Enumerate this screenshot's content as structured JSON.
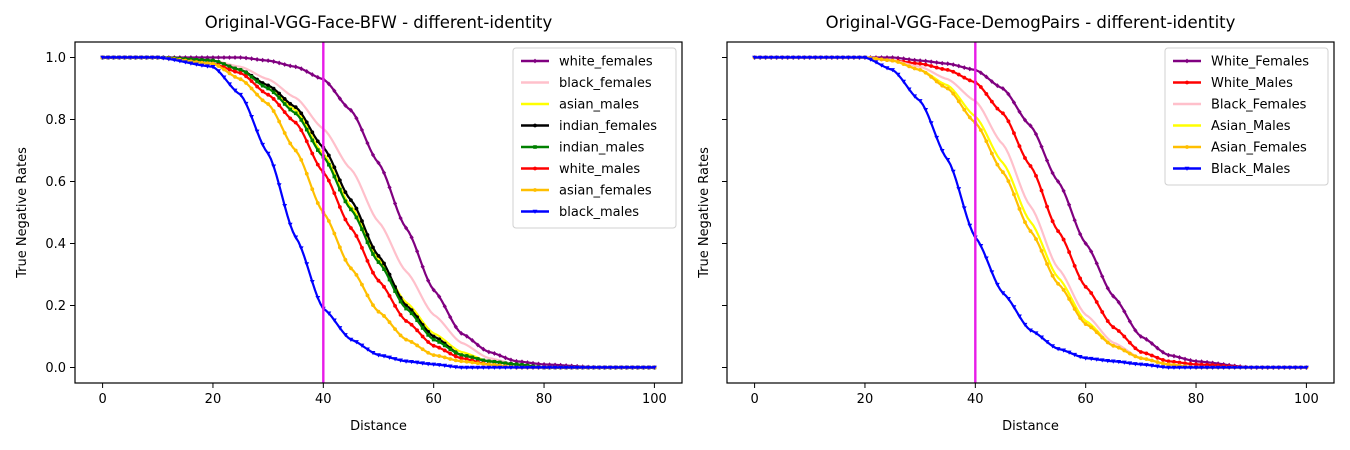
{
  "chart_data": [
    {
      "type": "line",
      "title": "Original-VGG-Face-BFW - different-identity",
      "xlabel": "Distance",
      "ylabel": "True Negative Rates",
      "xlim": [
        -5,
        105
      ],
      "ylim": [
        -0.05,
        1.05
      ],
      "xticks": [
        0,
        20,
        40,
        60,
        80,
        100
      ],
      "yticks": [
        0.0,
        0.2,
        0.4,
        0.6,
        0.8,
        1.0
      ],
      "ytick_labels": [
        "0.0",
        "0.2",
        "0.4",
        "0.6",
        "0.8",
        "1.0"
      ],
      "xtick_labels": [
        "0",
        "20",
        "40",
        "60",
        "80",
        "100"
      ],
      "legend_position": "top-right",
      "threshold_line": {
        "x": 40,
        "color": "#e81ce8"
      },
      "x": [
        0,
        10,
        20,
        25,
        30,
        35,
        40,
        45,
        50,
        55,
        60,
        65,
        70,
        75,
        80,
        90,
        100
      ],
      "series": [
        {
          "name": "white_females",
          "color": "#800080",
          "marker": "diamond",
          "values": [
            1.0,
            1.0,
            1.0,
            1.0,
            0.99,
            0.97,
            0.93,
            0.83,
            0.66,
            0.45,
            0.25,
            0.11,
            0.05,
            0.02,
            0.01,
            0.0,
            0.0
          ]
        },
        {
          "name": "black_females",
          "color": "#ffc0cb",
          "marker": "none",
          "values": [
            1.0,
            1.0,
            0.99,
            0.97,
            0.93,
            0.87,
            0.77,
            0.64,
            0.47,
            0.31,
            0.17,
            0.08,
            0.03,
            0.01,
            0.0,
            0.0,
            0.0
          ]
        },
        {
          "name": "asian_males",
          "color": "#ffff00",
          "marker": "none",
          "values": [
            1.0,
            1.0,
            0.99,
            0.96,
            0.91,
            0.83,
            0.69,
            0.52,
            0.35,
            0.21,
            0.11,
            0.05,
            0.02,
            0.01,
            0.0,
            0.0,
            0.0
          ]
        },
        {
          "name": "indian_females",
          "color": "#000000",
          "marker": "circle",
          "values": [
            1.0,
            1.0,
            0.99,
            0.96,
            0.91,
            0.84,
            0.71,
            0.54,
            0.36,
            0.2,
            0.1,
            0.04,
            0.02,
            0.01,
            0.0,
            0.0,
            0.0
          ]
        },
        {
          "name": "indian_males",
          "color": "#008000",
          "marker": "square",
          "values": [
            1.0,
            1.0,
            0.99,
            0.96,
            0.9,
            0.82,
            0.68,
            0.51,
            0.34,
            0.19,
            0.09,
            0.04,
            0.02,
            0.01,
            0.0,
            0.0,
            0.0
          ]
        },
        {
          "name": "white_males",
          "color": "#ff0000",
          "marker": "circle",
          "values": [
            1.0,
            1.0,
            0.98,
            0.95,
            0.88,
            0.79,
            0.63,
            0.45,
            0.28,
            0.15,
            0.07,
            0.03,
            0.01,
            0.0,
            0.0,
            0.0,
            0.0
          ]
        },
        {
          "name": "asian_females",
          "color": "#ffbf00",
          "marker": "circle",
          "values": [
            1.0,
            1.0,
            0.98,
            0.93,
            0.85,
            0.7,
            0.5,
            0.32,
            0.18,
            0.09,
            0.04,
            0.02,
            0.01,
            0.0,
            0.0,
            0.0,
            0.0
          ]
        },
        {
          "name": "black_males",
          "color": "#0000ff",
          "marker": "triangle-down",
          "values": [
            1.0,
            1.0,
            0.97,
            0.88,
            0.69,
            0.42,
            0.19,
            0.09,
            0.04,
            0.02,
            0.01,
            0.0,
            0.0,
            0.0,
            0.0,
            0.0,
            0.0
          ]
        }
      ]
    },
    {
      "type": "line",
      "title": "Original-VGG-Face-DemogPairs - different-identity",
      "xlabel": "Distance",
      "ylabel": "True Negative Rates",
      "xlim": [
        -5,
        105
      ],
      "ylim": [
        -0.05,
        1.05
      ],
      "xticks": [
        0,
        20,
        40,
        60,
        80,
        100
      ],
      "yticks": [
        0.0,
        0.2,
        0.4,
        0.6,
        0.8,
        1.0
      ],
      "xtick_labels": [
        "0",
        "20",
        "40",
        "60",
        "80",
        "100"
      ],
      "shared_y": true,
      "legend_position": "top-right",
      "threshold_line": {
        "x": 40,
        "color": "#e81ce8"
      },
      "x": [
        0,
        10,
        20,
        25,
        30,
        35,
        40,
        45,
        50,
        55,
        60,
        65,
        70,
        75,
        80,
        90,
        100
      ],
      "series": [
        {
          "name": "White_Females",
          "color": "#800080",
          "marker": "diamond",
          "values": [
            1.0,
            1.0,
            1.0,
            1.0,
            0.99,
            0.98,
            0.96,
            0.9,
            0.78,
            0.6,
            0.4,
            0.23,
            0.1,
            0.04,
            0.02,
            0.0,
            0.0
          ]
        },
        {
          "name": "White_Males",
          "color": "#ff0000",
          "marker": "circle",
          "values": [
            1.0,
            1.0,
            1.0,
            0.99,
            0.98,
            0.96,
            0.92,
            0.82,
            0.65,
            0.44,
            0.26,
            0.13,
            0.05,
            0.02,
            0.01,
            0.0,
            0.0
          ]
        },
        {
          "name": "Black_Females",
          "color": "#ffc0cb",
          "marker": "none",
          "values": [
            1.0,
            1.0,
            1.0,
            0.99,
            0.97,
            0.93,
            0.86,
            0.72,
            0.52,
            0.32,
            0.17,
            0.08,
            0.03,
            0.01,
            0.0,
            0.0,
            0.0
          ]
        },
        {
          "name": "Asian_Males",
          "color": "#ffff00",
          "marker": "none",
          "values": [
            1.0,
            1.0,
            1.0,
            0.99,
            0.96,
            0.91,
            0.81,
            0.66,
            0.47,
            0.29,
            0.15,
            0.07,
            0.03,
            0.01,
            0.0,
            0.0,
            0.0
          ]
        },
        {
          "name": "Asian_Females",
          "color": "#ffbf00",
          "marker": "circle",
          "values": [
            1.0,
            1.0,
            1.0,
            0.99,
            0.96,
            0.9,
            0.79,
            0.63,
            0.44,
            0.27,
            0.14,
            0.07,
            0.03,
            0.01,
            0.0,
            0.0,
            0.0
          ]
        },
        {
          "name": "Black_Males",
          "color": "#0000ff",
          "marker": "triangle-down",
          "values": [
            1.0,
            1.0,
            1.0,
            0.96,
            0.86,
            0.67,
            0.42,
            0.24,
            0.12,
            0.06,
            0.03,
            0.02,
            0.01,
            0.0,
            0.0,
            0.0,
            0.0
          ]
        }
      ]
    }
  ]
}
